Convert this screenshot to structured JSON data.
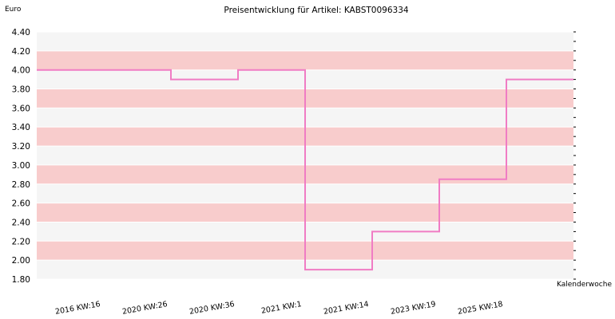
{
  "chart_data": {
    "type": "line",
    "step": true,
    "title": "Preisentwicklung für Artikel: KABST0096334",
    "ylabel": "Euro",
    "xlabel": "Kalenderwoche",
    "ylim": [
      1.8,
      4.4
    ],
    "yticks": [
      "1.80",
      "2.00",
      "2.20",
      "2.40",
      "2.60",
      "2.80",
      "3.00",
      "3.20",
      "3.40",
      "3.60",
      "3.80",
      "4.00",
      "4.20",
      "4.40"
    ],
    "categories": [
      "2016 KW:16",
      "2020 KW:26",
      "2020 KW:36",
      "2021 KW:1",
      "2021 KW:14",
      "2023 KW:19",
      "2025 KW:18"
    ],
    "series": [
      {
        "values": [
          4.0,
          3.9,
          4.0,
          1.9,
          2.3,
          2.85,
          3.9
        ]
      }
    ],
    "grid": true,
    "colors": {
      "line": "#f07cc4",
      "band_pink": "#f8cccc",
      "band_gray": "#f5f5f5"
    }
  }
}
